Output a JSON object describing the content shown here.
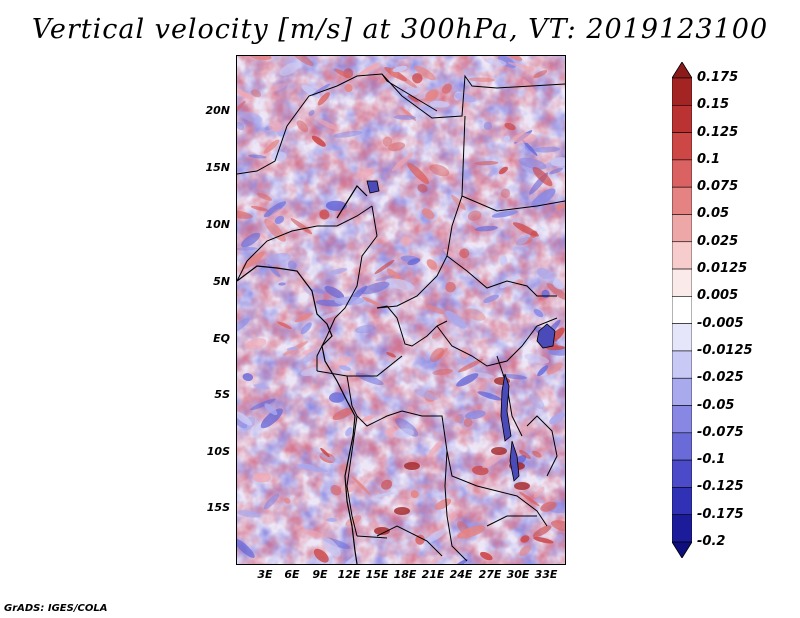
{
  "title": "Vertical velocity [m/s] at 300hPa, VT: 2019123100",
  "footer": "GrADS: IGES/COLA",
  "y_axis_labels": [
    "20N",
    "15N",
    "10N",
    "5N",
    "EQ",
    "5S",
    "10S",
    "15S"
  ],
  "x_axis_labels": [
    "3E",
    "6E",
    "9E",
    "12E",
    "15E",
    "18E",
    "21E",
    "24E",
    "27E",
    "30E",
    "33E"
  ],
  "colorbar": {
    "levels": [
      "0.175",
      "0.15",
      "0.125",
      "0.1",
      "0.075",
      "0.05",
      "0.025",
      "0.0125",
      "0.005",
      "-0.005",
      "-0.0125",
      "-0.025",
      "-0.05",
      "-0.075",
      "-0.1",
      "-0.125",
      "-0.175",
      "-0.2"
    ],
    "colors": [
      "#8b1a1a",
      "#a42424",
      "#bb3232",
      "#cd4747",
      "#da6262",
      "#e58383",
      "#eea7a7",
      "#f6cccc",
      "#fbeaea",
      "#ffffff",
      "#e6e6fb",
      "#c9c9f5",
      "#a9a9ee",
      "#8888e4",
      "#6a6ad8",
      "#4b4bc9",
      "#3131b6",
      "#1c1c9b",
      "#0e0e7e"
    ]
  },
  "colors": {
    "positive": "#cd4747",
    "negative": "#6a6ad8",
    "border": "#000000"
  }
}
